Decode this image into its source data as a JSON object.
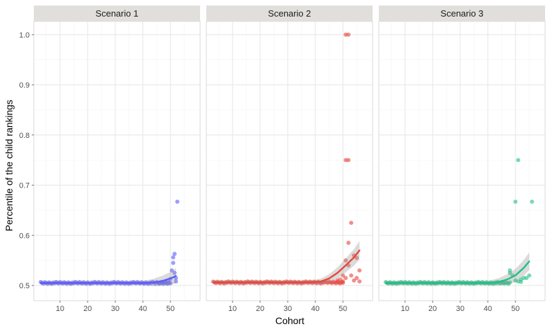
{
  "chart_data": {
    "type": "scatter",
    "xlabel": "Cohort",
    "ylabel": "Percentile of the child rankings",
    "xlim": [
      0,
      58
    ],
    "ylim": [
      0.47,
      1.02
    ],
    "x_ticks": [
      10,
      20,
      30,
      40,
      50
    ],
    "y_ticks": [
      0.5,
      0.6,
      0.7,
      0.8,
      0.9,
      1.0
    ],
    "y_tick_labels": [
      "0.5",
      "0.6",
      "0.7",
      "0.8",
      "0.9",
      "1.0"
    ],
    "grid": true,
    "facets": [
      {
        "name": "Scenario 1",
        "color": "#5b5bff",
        "dense_x_range": [
          3,
          50
        ],
        "dense_y": 0.505,
        "points": [
          [
            46,
            0.505
          ],
          [
            47,
            0.507
          ],
          [
            48,
            0.508
          ],
          [
            49,
            0.51
          ],
          [
            50,
            0.513
          ],
          [
            50.5,
            0.53
          ],
          [
            51,
            0.556
          ],
          [
            51,
            0.545
          ],
          [
            51.5,
            0.563
          ],
          [
            51.5,
            0.525
          ],
          [
            52,
            0.515
          ],
          [
            52,
            0.508
          ],
          [
            52.5,
            0.667
          ]
        ],
        "fit": [
          [
            3,
            0.505
          ],
          [
            40,
            0.505
          ],
          [
            44,
            0.506
          ],
          [
            47,
            0.509
          ],
          [
            50,
            0.514
          ],
          [
            52,
            0.519
          ]
        ]
      },
      {
        "name": "Scenario 2",
        "color": "#e8453c",
        "dense_x_range": [
          3,
          50
        ],
        "dense_y": 0.506,
        "points": [
          [
            51,
            1.0
          ],
          [
            52,
            1.0
          ],
          [
            51,
            0.75
          ],
          [
            52,
            0.75
          ],
          [
            53,
            0.625
          ],
          [
            52,
            0.585
          ],
          [
            51,
            0.55
          ],
          [
            54,
            0.56
          ],
          [
            52,
            0.54
          ],
          [
            55,
            0.555
          ],
          [
            53,
            0.52
          ],
          [
            56,
            0.53
          ],
          [
            50,
            0.52
          ],
          [
            54,
            0.51
          ],
          [
            56,
            0.508
          ],
          [
            51,
            0.515
          ],
          [
            49,
            0.512
          ],
          [
            48,
            0.51
          ],
          [
            55,
            0.515
          ],
          [
            50,
            0.508
          ]
        ],
        "fit": [
          [
            3,
            0.506
          ],
          [
            38,
            0.506
          ],
          [
            42,
            0.508
          ],
          [
            45,
            0.514
          ],
          [
            48,
            0.525
          ],
          [
            51,
            0.54
          ],
          [
            54,
            0.556
          ],
          [
            56,
            0.57
          ]
        ]
      },
      {
        "name": "Scenario 3",
        "color": "#1fbf85",
        "dense_x_range": [
          3,
          48
        ],
        "dense_y": 0.505,
        "points": [
          [
            51,
            0.75
          ],
          [
            50,
            0.667
          ],
          [
            56,
            0.667
          ],
          [
            48,
            0.53
          ],
          [
            48,
            0.525
          ],
          [
            49,
            0.52
          ],
          [
            50,
            0.51
          ],
          [
            52,
            0.512
          ],
          [
            53,
            0.515
          ],
          [
            54,
            0.515
          ],
          [
            55,
            0.52
          ],
          [
            51,
            0.508
          ],
          [
            52,
            0.507
          ]
        ],
        "fit": [
          [
            3,
            0.505
          ],
          [
            40,
            0.505
          ],
          [
            44,
            0.507
          ],
          [
            47,
            0.512
          ],
          [
            50,
            0.52
          ],
          [
            53,
            0.535
          ],
          [
            55,
            0.548
          ]
        ]
      }
    ]
  }
}
